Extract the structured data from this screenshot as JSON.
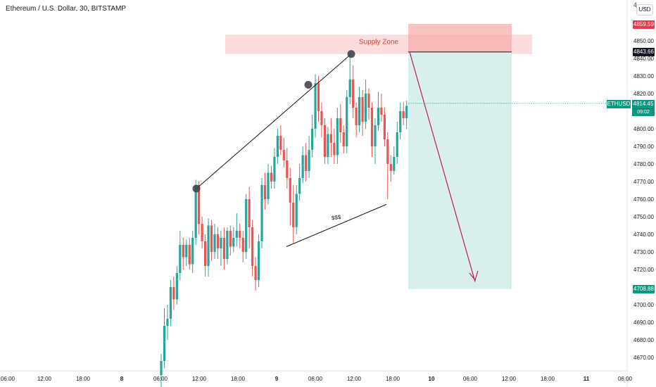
{
  "header": {
    "title": "Ethereum / U.S. Dollar, 30, BITSTAMP",
    "currency_button": "USD",
    "currency_peek": "4"
  },
  "price_axis": {
    "ticks": [
      "4850.00",
      "4840.00",
      "4830.00",
      "4820.00",
      "4810.00",
      "4800.00",
      "4790.00",
      "4780.00",
      "4770.00",
      "4760.00",
      "4750.00",
      "4740.00",
      "4730.00",
      "4720.00",
      "4710.00",
      "4700.00",
      "4690.00",
      "4680.00",
      "4670.00"
    ],
    "labels": {
      "stop_price": "4859.59",
      "entry_price": "4843.66",
      "symbol": "ETHUSD",
      "last_price": "4814.45",
      "countdown": "09:02",
      "target_price": "4708.88"
    }
  },
  "time_axis": {
    "ticks": [
      {
        "label": "06:00",
        "bold": false
      },
      {
        "label": "12:00",
        "bold": false
      },
      {
        "label": "18:00",
        "bold": false
      },
      {
        "label": "8",
        "bold": true
      },
      {
        "label": "06:00",
        "bold": false
      },
      {
        "label": "12:00",
        "bold": false
      },
      {
        "label": "18:00",
        "bold": false
      },
      {
        "label": "9",
        "bold": true
      },
      {
        "label": "06:00",
        "bold": false
      },
      {
        "label": "12:00",
        "bold": false
      },
      {
        "label": "18:00",
        "bold": false
      },
      {
        "label": "10",
        "bold": true
      },
      {
        "label": "06:00",
        "bold": false
      },
      {
        "label": "12:00",
        "bold": false
      },
      {
        "label": "18:00",
        "bold": false
      },
      {
        "label": "11",
        "bold": true
      },
      {
        "label": "06:00",
        "bold": false
      }
    ]
  },
  "annotations": {
    "supply_zone_label": "Supply Zone",
    "liquidity_label": "$$$"
  },
  "colors": {
    "up": "#26a69a",
    "down": "#ef5350",
    "stop_tag": "#f23645",
    "entry_tag": "#131722",
    "target_tag": "#089981",
    "zone_fill": "#f9c6c6",
    "target_fill": "#d8efeb",
    "arrow": "#c2185b"
  },
  "chart_data": {
    "type": "candlestick",
    "symbol": "ETHUSD",
    "interval": "30",
    "exchange": "BITSTAMP",
    "ylim": [
      4664,
      4875
    ],
    "candles": [
      [
        4660,
        4668,
        4650,
        4672
      ],
      [
        4668,
        4688,
        4664,
        4698
      ],
      [
        4688,
        4692,
        4680,
        4700
      ],
      [
        4692,
        4710,
        4688,
        4714
      ],
      [
        4710,
        4703,
        4697,
        4716
      ],
      [
        4703,
        4718,
        4700,
        4722
      ],
      [
        4718,
        4734,
        4714,
        4742
      ],
      [
        4734,
        4727,
        4720,
        4738
      ],
      [
        4727,
        4734,
        4722,
        4737
      ],
      [
        4734,
        4723,
        4720,
        4738
      ],
      [
        4723,
        4738,
        4718,
        4742
      ],
      [
        4738,
        4768,
        4734,
        4771
      ],
      [
        4768,
        4746,
        4740,
        4770
      ],
      [
        4746,
        4736,
        4732,
        4750
      ],
      [
        4736,
        4722,
        4716,
        4740
      ],
      [
        4722,
        4745,
        4716,
        4749
      ],
      [
        4745,
        4730,
        4725,
        4748
      ],
      [
        4730,
        4740,
        4726,
        4746
      ],
      [
        4740,
        4732,
        4726,
        4744
      ],
      [
        4732,
        4738,
        4722,
        4742
      ],
      [
        4738,
        4726,
        4720,
        4744
      ],
      [
        4726,
        4742,
        4723,
        4744
      ],
      [
        4742,
        4733,
        4728,
        4745
      ],
      [
        4733,
        4738,
        4730,
        4744
      ],
      [
        4738,
        4742,
        4733,
        4752
      ],
      [
        4742,
        4738,
        4732,
        4746
      ],
      [
        4738,
        4730,
        4724,
        4742
      ],
      [
        4730,
        4760,
        4726,
        4763
      ],
      [
        4760,
        4744,
        4732,
        4767
      ],
      [
        4744,
        4722,
        4716,
        4748
      ],
      [
        4722,
        4714,
        4708,
        4727
      ],
      [
        4714,
        4736,
        4710,
        4740
      ],
      [
        4736,
        4768,
        4732,
        4772
      ],
      [
        4768,
        4760,
        4754,
        4775
      ],
      [
        4760,
        4775,
        4757,
        4780
      ],
      [
        4775,
        4770,
        4766,
        4779
      ],
      [
        4770,
        4784,
        4766,
        4789
      ],
      [
        4784,
        4796,
        4780,
        4800
      ],
      [
        4796,
        4788,
        4785,
        4802
      ],
      [
        4788,
        4782,
        4778,
        4795
      ],
      [
        4782,
        4772,
        4766,
        4789
      ],
      [
        4772,
        4758,
        4745,
        4778
      ],
      [
        4758,
        4744,
        4735,
        4768
      ],
      [
        4744,
        4763,
        4740,
        4768
      ],
      [
        4763,
        4772,
        4759,
        4780
      ],
      [
        4772,
        4785,
        4769,
        4790
      ],
      [
        4785,
        4776,
        4770,
        4792
      ],
      [
        4776,
        4788,
        4772,
        4796
      ],
      [
        4788,
        4800,
        4784,
        4808
      ],
      [
        4800,
        4826,
        4795,
        4831
      ],
      [
        4826,
        4810,
        4804,
        4830
      ],
      [
        4810,
        4802,
        4795,
        4815
      ],
      [
        4802,
        4784,
        4780,
        4806
      ],
      [
        4784,
        4797,
        4780,
        4801
      ],
      [
        4797,
        4792,
        4784,
        4806
      ],
      [
        4792,
        4785,
        4780,
        4800
      ],
      [
        4785,
        4806,
        4780,
        4812
      ],
      [
        4806,
        4798,
        4792,
        4814
      ],
      [
        4798,
        4790,
        4786,
        4802
      ],
      [
        4790,
        4818,
        4786,
        4822
      ],
      [
        4818,
        4828,
        4814,
        4843
      ],
      [
        4828,
        4812,
        4806,
        4836
      ],
      [
        4812,
        4802,
        4795,
        4815
      ],
      [
        4802,
        4818,
        4798,
        4824
      ],
      [
        4818,
        4804,
        4796,
        4822
      ],
      [
        4804,
        4820,
        4800,
        4828
      ],
      [
        4820,
        4812,
        4805,
        4823
      ],
      [
        4812,
        4790,
        4784,
        4815
      ],
      [
        4790,
        4802,
        4780,
        4806
      ],
      [
        4802,
        4812,
        4799,
        4821
      ],
      [
        4812,
        4808,
        4804,
        4820
      ],
      [
        4808,
        4794,
        4790,
        4812
      ],
      [
        4794,
        4780,
        4760,
        4798
      ],
      [
        4780,
        4776,
        4770,
        4785
      ],
      [
        4776,
        4784,
        4774,
        4790
      ],
      [
        4784,
        4798,
        4780,
        4804
      ],
      [
        4798,
        4810,
        4794,
        4815
      ],
      [
        4810,
        4806,
        4802,
        4815
      ],
      [
        4806,
        4813,
        4800,
        4816
      ]
    ],
    "candle_fields": [
      "open",
      "close",
      "low",
      "high"
    ],
    "supply_zone": {
      "low": 4842.5,
      "high": 4853.5,
      "label": "Supply Zone"
    },
    "trade": {
      "entry": 4843.66,
      "stop": 4859.59,
      "target": 4708.88
    },
    "last_price": 4814.45
  }
}
